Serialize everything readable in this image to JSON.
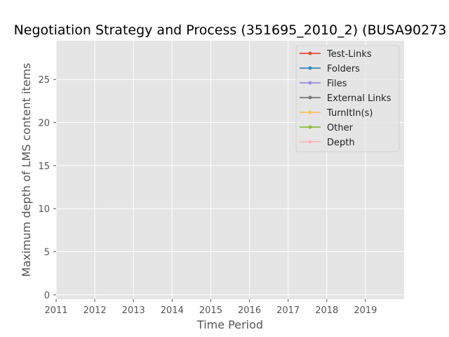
{
  "chart_data": {
    "type": "line",
    "title": "Negotiation Strategy and Process (351695_2010_2) (BUSA90273",
    "xlabel": "Time Period",
    "ylabel": "Maximum depth of LMS content items",
    "xlim": [
      2011,
      2020
    ],
    "ylim": [
      -0.5,
      29.5
    ],
    "xticks": [
      "2011",
      "2012",
      "2013",
      "2014",
      "2015",
      "2016",
      "2017",
      "2018",
      "2019"
    ],
    "yticks": [
      "0",
      "5",
      "10",
      "15",
      "20",
      "25"
    ],
    "grid": true,
    "legend_position": "top-right",
    "series": [
      {
        "name": "Test-Links",
        "color": "#e24a33",
        "values": []
      },
      {
        "name": "Folders",
        "color": "#348abd",
        "values": []
      },
      {
        "name": "Files",
        "color": "#988ed5",
        "values": []
      },
      {
        "name": "External Links",
        "color": "#777777",
        "values": []
      },
      {
        "name": "TurnItIn(s)",
        "color": "#fbc15e",
        "values": []
      },
      {
        "name": "Other",
        "color": "#8eba42",
        "values": []
      },
      {
        "name": "Depth",
        "color": "#ffb5b8",
        "values": []
      }
    ]
  }
}
